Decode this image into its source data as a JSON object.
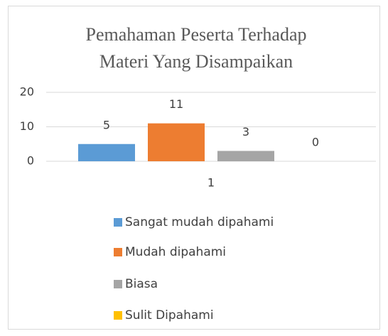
{
  "chart_data": {
    "type": "bar",
    "title": "Pemahaman Peserta Terhadap Materi Yang Disampaikan",
    "categories": [
      "1"
    ],
    "series": [
      {
        "name": "Sangat mudah dipahami",
        "color": "#5b9bd5",
        "values": [
          5
        ]
      },
      {
        "name": "Mudah dipahami",
        "color": "#ed7d31",
        "values": [
          11
        ]
      },
      {
        "name": "Biasa",
        "color": "#a5a5a5",
        "values": [
          3
        ]
      },
      {
        "name": "Sulit Dipahami",
        "color": "#ffc000",
        "values": [
          0
        ]
      }
    ],
    "ylim": [
      0,
      20
    ],
    "yticks": [
      0,
      10,
      20
    ],
    "grid": true,
    "legend": "bottom"
  }
}
